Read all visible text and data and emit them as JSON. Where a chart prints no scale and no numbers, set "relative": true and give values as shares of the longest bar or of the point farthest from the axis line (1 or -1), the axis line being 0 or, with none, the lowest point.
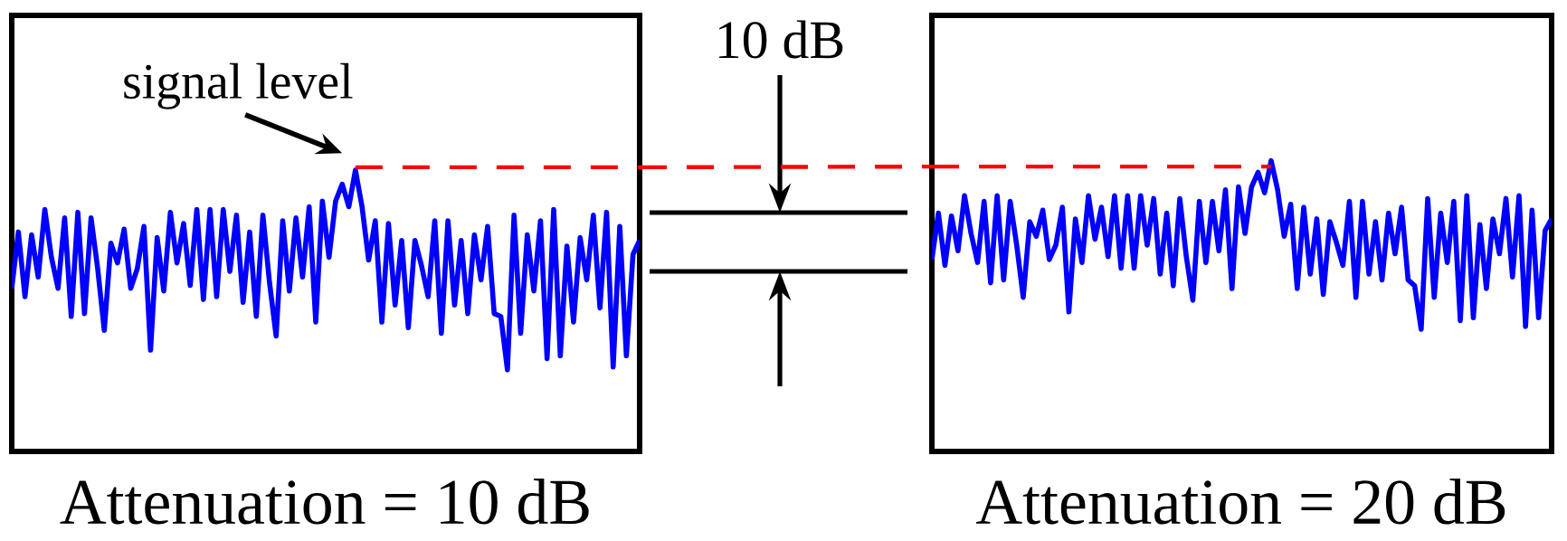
{
  "chart_data": [
    {
      "type": "line",
      "relative": true,
      "xlabel": "Attenuation = 10 dB",
      "annotations": [
        "signal level",
        "10 dB"
      ],
      "categories": [
        null,
        null,
        null,
        null,
        null,
        null,
        null,
        null,
        null,
        null,
        null,
        null,
        null,
        null,
        null,
        null,
        null,
        null,
        null,
        null,
        null,
        null,
        null,
        null,
        null,
        null,
        null,
        null,
        null,
        null,
        null,
        null,
        null,
        null,
        null,
        null,
        null,
        null,
        null,
        null,
        null,
        null,
        null,
        null,
        null,
        null,
        null,
        null,
        null,
        null,
        null,
        null,
        null,
        null,
        null,
        null,
        null,
        null,
        null,
        null,
        null,
        null,
        null,
        null,
        null,
        null,
        null,
        null,
        null,
        null,
        null,
        null,
        null,
        null,
        null,
        null,
        null,
        null,
        null,
        null,
        null,
        null,
        null,
        null,
        null,
        null,
        null,
        null,
        null,
        null,
        null,
        null,
        null,
        null,
        null,
        null
      ],
      "series": [
        {
          "color": "#0000ff",
          "values": [
            0.58,
            0.78,
            0.55,
            0.77,
            0.62,
            0.86,
            0.69,
            0.58,
            0.83,
            0.48,
            0.85,
            0.49,
            0.83,
            0.65,
            0.43,
            0.74,
            0.67,
            0.79,
            0.58,
            0.65,
            0.8,
            0.36,
            0.76,
            0.57,
            0.85,
            0.67,
            0.81,
            0.59,
            0.86,
            0.54,
            0.86,
            0.55,
            0.86,
            0.64,
            0.84,
            0.53,
            0.78,
            0.48,
            0.84,
            0.6,
            0.41,
            0.82,
            0.57,
            0.83,
            0.62,
            0.87,
            0.46,
            0.89,
            0.69,
            0.89,
            0.95,
            0.87,
            1.0,
            0.87,
            0.68,
            0.82,
            0.46,
            0.81,
            0.52,
            0.75,
            0.44,
            0.75,
            0.66,
            0.55,
            0.82,
            0.42,
            0.82,
            0.52,
            0.75,
            0.49,
            0.77,
            0.61,
            0.8,
            0.49,
            0.48,
            0.29,
            0.84,
            0.42,
            0.77,
            0.57,
            0.82,
            0.33,
            0.86,
            0.34,
            0.73,
            0.46,
            0.76,
            0.61,
            0.84,
            0.51,
            0.85,
            0.3,
            0.8,
            0.34,
            0.7,
            0.75
          ]
        }
      ],
      "ref_lines": [
        {
          "axis": "y",
          "value": 1.01,
          "color": "#ff0000",
          "line_style": "dashed"
        }
      ]
    },
    {
      "type": "line",
      "relative": true,
      "xlabel": "Attenuation = 20 dB",
      "categories": [
        null,
        null,
        null,
        null,
        null,
        null,
        null,
        null,
        null,
        null,
        null,
        null,
        null,
        null,
        null,
        null,
        null,
        null,
        null,
        null,
        null,
        null,
        null,
        null,
        null,
        null,
        null,
        null,
        null,
        null,
        null,
        null,
        null,
        null,
        null,
        null,
        null,
        null,
        null,
        null,
        null,
        null,
        null,
        null,
        null,
        null,
        null,
        null,
        null,
        null,
        null,
        null,
        null,
        null,
        null,
        null,
        null,
        null,
        null,
        null,
        null,
        null,
        null,
        null,
        null,
        null,
        null,
        null,
        null,
        null,
        null,
        null,
        null,
        null,
        null,
        null,
        null,
        null,
        null,
        null,
        null,
        null,
        null,
        null,
        null,
        null,
        null,
        null,
        null,
        null,
        null,
        null,
        null,
        null,
        null,
        null
      ],
      "series": [
        {
          "color": "#0000ff",
          "values": [
            0.66,
            0.82,
            0.64,
            0.81,
            0.69,
            0.88,
            0.75,
            0.65,
            0.86,
            0.58,
            0.88,
            0.59,
            0.86,
            0.71,
            0.53,
            0.79,
            0.74,
            0.83,
            0.66,
            0.71,
            0.84,
            0.48,
            0.8,
            0.65,
            0.88,
            0.73,
            0.84,
            0.67,
            0.88,
            0.63,
            0.88,
            0.63,
            0.88,
            0.71,
            0.87,
            0.61,
            0.82,
            0.57,
            0.87,
            0.67,
            0.52,
            0.86,
            0.65,
            0.86,
            0.69,
            0.9,
            0.56,
            0.91,
            0.75,
            0.91,
            0.96,
            0.89,
            1.0,
            0.9,
            0.74,
            0.85,
            0.56,
            0.84,
            0.61,
            0.8,
            0.54,
            0.79,
            0.72,
            0.64,
            0.86,
            0.53,
            0.86,
            0.61,
            0.79,
            0.59,
            0.82,
            0.68,
            0.84,
            0.59,
            0.57,
            0.42,
            0.87,
            0.53,
            0.82,
            0.65,
            0.86,
            0.45,
            0.88,
            0.46,
            0.78,
            0.56,
            0.8,
            0.68,
            0.87,
            0.6,
            0.88,
            0.43,
            0.83,
            0.46,
            0.76,
            0.8
          ]
        }
      ],
      "ref_lines": [
        {
          "axis": "y",
          "value": 0.98,
          "color": "#ff0000",
          "line_style": "dashed"
        }
      ]
    }
  ]
}
